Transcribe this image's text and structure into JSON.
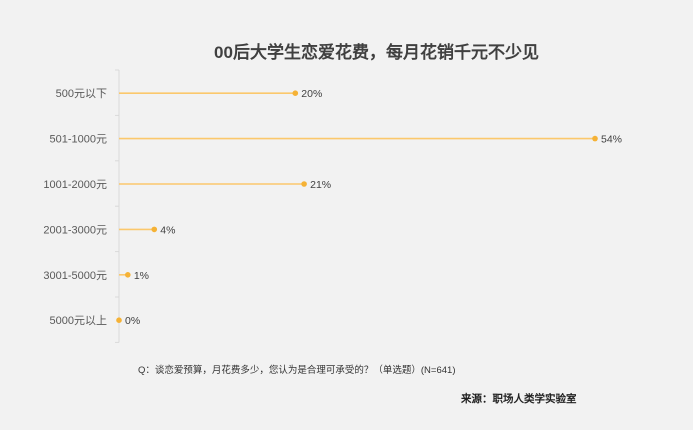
{
  "chart_data": {
    "type": "lollipop-bar-horizontal",
    "title": "00后大学生恋爱花费，每月花销千元不少见",
    "categories": [
      "500元以下",
      "501-1000元",
      "1001-2000元",
      "2001-3000元",
      "3001-5000元",
      "5000元以上"
    ],
    "values": [
      20,
      54,
      21,
      4,
      1,
      0
    ],
    "value_labels": [
      "20%",
      "54%",
      "21%",
      "4%",
      "1%",
      "0%"
    ],
    "unit": "%",
    "xlim": [
      0,
      54
    ],
    "grid": false,
    "colors": {
      "line": "#fbc86c",
      "dot": "#f5b236",
      "background": "#f2f2f2"
    }
  },
  "footnote": "Q：谈恋爱预算，月花费多少，您认为是合理可承受的？（单选题）(N=641)",
  "source": "来源：职场人类学实验室"
}
